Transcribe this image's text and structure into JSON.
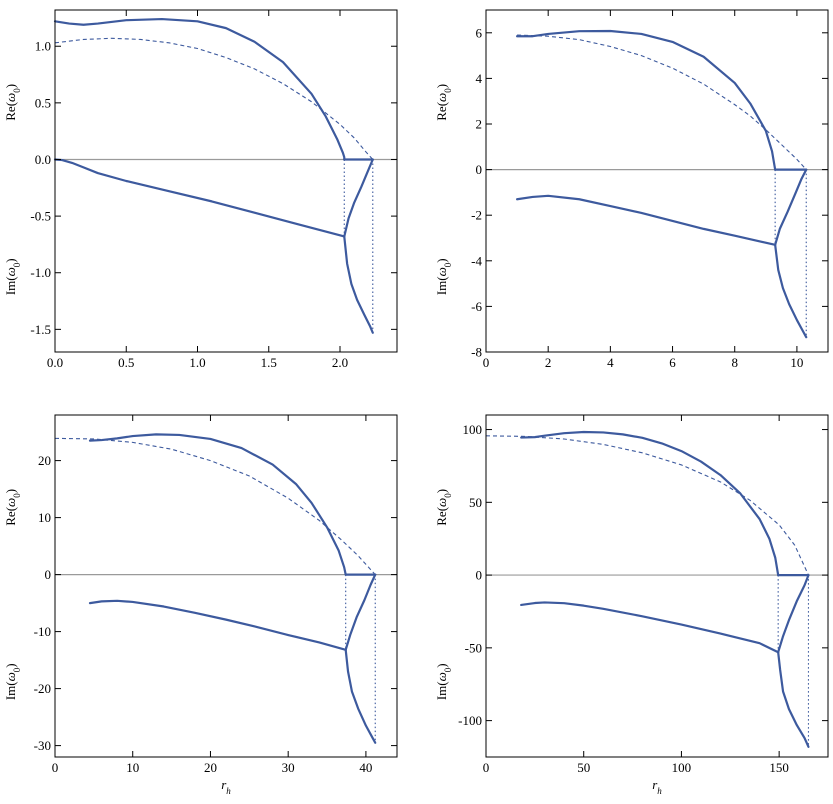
{
  "colors": {
    "curve": "#3d5a9e",
    "zero_line": "#9a9a9a",
    "frame": "#000000"
  },
  "chart_data": [
    {
      "type": "line",
      "xlabel": "",
      "ylabel_top": "Re(ω0)",
      "ylabel_bottom": "Im(ω0)",
      "xlim": [
        0,
        2.4
      ],
      "ylim": [
        -1.7,
        1.32
      ],
      "xticks": [
        0,
        0.5,
        1,
        1.5,
        2
      ],
      "xtick_labels": [
        "0.0",
        "0.5",
        "1.0",
        "1.5",
        "2.0"
      ],
      "yticks": [
        1.0,
        0.5,
        0,
        -0.5,
        -1.0,
        -1.5
      ],
      "ytick_labels": [
        "1.0",
        "0.5",
        "0.0",
        "-0.5",
        "-1.0",
        "-1.5"
      ],
      "grid": false,
      "series": [
        {
          "style": "solid",
          "x": [
            0,
            0.1,
            0.2,
            0.3,
            0.5,
            0.75,
            1.0,
            1.2,
            1.4,
            1.6,
            1.8,
            1.9,
            1.98,
            2.02,
            2.03,
            2.03
          ],
          "y": [
            1.22,
            1.2,
            1.19,
            1.2,
            1.23,
            1.24,
            1.22,
            1.16,
            1.04,
            0.86,
            0.58,
            0.38,
            0.18,
            0.06,
            0.02,
            0
          ]
        },
        {
          "style": "solid",
          "x": [
            2.03,
            2.23
          ],
          "y": [
            0,
            0
          ]
        },
        {
          "style": "solid",
          "x": [
            0,
            0.05,
            0.12,
            0.2,
            0.3,
            0.5,
            0.8,
            1.1,
            1.4,
            1.7,
            2.03
          ],
          "y": [
            0,
            -0.005,
            -0.03,
            -0.07,
            -0.12,
            -0.19,
            -0.28,
            -0.37,
            -0.47,
            -0.57,
            -0.68
          ]
        },
        {
          "style": "solid",
          "x": [
            2.03,
            2.05,
            2.08,
            2.12,
            2.17,
            2.21,
            2.23
          ],
          "y": [
            -0.68,
            -0.92,
            -1.1,
            -1.24,
            -1.37,
            -1.47,
            -1.53
          ]
        },
        {
          "style": "solid",
          "x": [
            2.03,
            2.06,
            2.1,
            2.15,
            2.19,
            2.22,
            2.23
          ],
          "y": [
            -0.68,
            -0.52,
            -0.38,
            -0.24,
            -0.12,
            -0.03,
            0
          ]
        },
        {
          "style": "dashed",
          "x": [
            0,
            0.2,
            0.4,
            0.6,
            0.8,
            1.0,
            1.2,
            1.4,
            1.6,
            1.8,
            2.0,
            2.1,
            2.18,
            2.23
          ],
          "y": [
            1.03,
            1.06,
            1.07,
            1.06,
            1.03,
            0.98,
            0.9,
            0.8,
            0.67,
            0.51,
            0.31,
            0.19,
            0.07,
            0
          ]
        },
        {
          "style": "dotted",
          "x": [
            2.03,
            2.03
          ],
          "y": [
            0,
            -0.68
          ]
        },
        {
          "style": "dotted",
          "x": [
            2.23,
            2.23
          ],
          "y": [
            0,
            -1.53
          ]
        }
      ]
    },
    {
      "type": "line",
      "xlabel": "",
      "ylabel_top": "Re(ω0)",
      "ylabel_bottom": "Im(ω0)",
      "xlim": [
        0,
        11
      ],
      "ylim": [
        -8,
        7
      ],
      "xticks": [
        0,
        2,
        4,
        6,
        8,
        10
      ],
      "xtick_labels": [
        "0",
        "2",
        "4",
        "6",
        "8",
        "10"
      ],
      "yticks": [
        6,
        4,
        2,
        0,
        -2,
        -4,
        -6,
        -8
      ],
      "ytick_labels": [
        "6",
        "4",
        "2",
        "0",
        "-2",
        "-4",
        "-6",
        "-8"
      ],
      "grid": false,
      "series": [
        {
          "style": "solid",
          "x": [
            1.0,
            1.5,
            2.0,
            3.0,
            4.0,
            5.0,
            6.0,
            7.0,
            8.0,
            8.5,
            9.0,
            9.2,
            9.3
          ],
          "y": [
            5.85,
            5.85,
            5.95,
            6.07,
            6.08,
            5.95,
            5.6,
            4.95,
            3.8,
            2.9,
            1.7,
            0.8,
            0
          ]
        },
        {
          "style": "solid",
          "x": [
            9.3,
            10.3
          ],
          "y": [
            0,
            0
          ]
        },
        {
          "style": "solid",
          "x": [
            1.0,
            1.5,
            2.0,
            3.0,
            4.0,
            5.0,
            6.0,
            7.0,
            8.0,
            9.3
          ],
          "y": [
            -1.3,
            -1.2,
            -1.15,
            -1.3,
            -1.6,
            -1.9,
            -2.25,
            -2.6,
            -2.9,
            -3.3
          ]
        },
        {
          "style": "solid",
          "x": [
            9.3,
            9.4,
            9.55,
            9.75,
            10.0,
            10.2,
            10.3
          ],
          "y": [
            -3.3,
            -4.4,
            -5.2,
            -5.9,
            -6.6,
            -7.1,
            -7.35
          ]
        },
        {
          "style": "solid",
          "x": [
            9.3,
            9.45,
            9.7,
            9.95,
            10.15,
            10.3
          ],
          "y": [
            -3.3,
            -2.6,
            -1.85,
            -1.05,
            -0.4,
            0
          ]
        },
        {
          "style": "dashed",
          "x": [
            1.0,
            2.0,
            3.0,
            4.0,
            5.0,
            6.0,
            7.0,
            8.0,
            8.5,
            9.0,
            9.5,
            10.0,
            10.3
          ],
          "y": [
            5.9,
            5.85,
            5.7,
            5.4,
            5.0,
            4.45,
            3.75,
            2.85,
            2.35,
            1.75,
            1.1,
            0.45,
            0
          ]
        },
        {
          "style": "dotted",
          "x": [
            9.3,
            9.3
          ],
          "y": [
            0,
            -3.3
          ]
        },
        {
          "style": "dotted",
          "x": [
            10.3,
            10.3
          ],
          "y": [
            0,
            -7.35
          ]
        }
      ]
    },
    {
      "type": "line",
      "xlabel": "r_h",
      "ylabel_top": "Re(ω0)",
      "ylabel_bottom": "Im(ω0)",
      "xlim": [
        0,
        44
      ],
      "ylim": [
        -32,
        28
      ],
      "xticks": [
        0,
        10,
        20,
        30,
        40
      ],
      "xtick_labels": [
        "0",
        "10",
        "20",
        "30",
        "40"
      ],
      "yticks": [
        20,
        10,
        0,
        -10,
        -20,
        -30
      ],
      "ytick_labels": [
        "20",
        "10",
        "0",
        "-10",
        "-20",
        "-30"
      ],
      "grid": false,
      "series": [
        {
          "style": "solid",
          "x": [
            4.5,
            6,
            8,
            10,
            13,
            16,
            20,
            24,
            28,
            31,
            33,
            35,
            36.5,
            37.2,
            37.4
          ],
          "y": [
            23.5,
            23.6,
            23.9,
            24.3,
            24.6,
            24.5,
            23.8,
            22.2,
            19.3,
            15.9,
            12.6,
            8.3,
            4.2,
            1.3,
            0
          ]
        },
        {
          "style": "solid",
          "x": [
            37.4,
            41.2
          ],
          "y": [
            0,
            0
          ]
        },
        {
          "style": "solid",
          "x": [
            4.5,
            6,
            8,
            10,
            14,
            18,
            22,
            26,
            30,
            34,
            37.4
          ],
          "y": [
            -5.0,
            -4.7,
            -4.6,
            -4.8,
            -5.6,
            -6.7,
            -7.9,
            -9.2,
            -10.6,
            -11.9,
            -13.2
          ]
        },
        {
          "style": "solid",
          "x": [
            37.4,
            37.7,
            38.2,
            39.0,
            40.0,
            40.8,
            41.2
          ],
          "y": [
            -13.2,
            -17,
            -20.5,
            -23.5,
            -26.5,
            -28.5,
            -29.5
          ]
        },
        {
          "style": "solid",
          "x": [
            37.4,
            38.0,
            38.8,
            39.8,
            40.6,
            41.2
          ],
          "y": [
            -13.2,
            -10.5,
            -7.5,
            -4.5,
            -1.8,
            0
          ]
        },
        {
          "style": "dashed",
          "x": [
            0,
            5,
            10,
            15,
            20,
            25,
            30,
            34,
            37,
            39,
            41.2
          ],
          "y": [
            23.9,
            23.8,
            23.2,
            22.0,
            20.0,
            17.3,
            13.4,
            9.5,
            5.9,
            3.3,
            0
          ]
        },
        {
          "style": "dotted",
          "x": [
            37.4,
            37.4
          ],
          "y": [
            0,
            -13.2
          ]
        },
        {
          "style": "dotted",
          "x": [
            41.2,
            41.2
          ],
          "y": [
            0,
            -29.5
          ]
        }
      ]
    },
    {
      "type": "line",
      "xlabel": "r_h",
      "ylabel_top": "Re(ω0)",
      "ylabel_bottom": "Im(ω0)",
      "xlim": [
        0,
        175
      ],
      "ylim": [
        -125,
        110
      ],
      "xticks": [
        0,
        50,
        100,
        150
      ],
      "xtick_labels": [
        "0",
        "50",
        "100",
        "150"
      ],
      "yticks": [
        100,
        50,
        0,
        -50,
        -100
      ],
      "ytick_labels": [
        "100",
        "50",
        "0",
        "-50",
        "-100"
      ],
      "grid": false,
      "series": [
        {
          "style": "solid",
          "x": [
            18,
            25,
            30,
            40,
            50,
            60,
            70,
            80,
            90,
            100,
            110,
            120,
            130,
            140,
            145,
            148,
            149.5
          ],
          "y": [
            94.5,
            94.8,
            95.8,
            97.5,
            98.3,
            98.0,
            96.7,
            94.3,
            90.5,
            85.2,
            78.0,
            68.7,
            56.3,
            38.5,
            25.0,
            12.0,
            0
          ]
        },
        {
          "style": "solid",
          "x": [
            149.5,
            165
          ],
          "y": [
            0,
            0
          ]
        },
        {
          "style": "solid",
          "x": [
            18,
            25,
            30,
            40,
            50,
            60,
            80,
            100,
            120,
            140,
            149.5
          ],
          "y": [
            -20.5,
            -19.2,
            -18.8,
            -19.3,
            -21.0,
            -23.2,
            -28.3,
            -34.0,
            -40.2,
            -46.8,
            -53.0
          ]
        },
        {
          "style": "solid",
          "x": [
            149.5,
            150.5,
            152,
            155,
            159,
            163,
            165
          ],
          "y": [
            -53,
            -65,
            -80,
            -92,
            -103,
            -112,
            -118
          ]
        },
        {
          "style": "solid",
          "x": [
            149.5,
            152,
            155,
            159,
            163,
            165
          ],
          "y": [
            -53,
            -42,
            -31,
            -18,
            -7,
            0
          ]
        },
        {
          "style": "dashed",
          "x": [
            0,
            20,
            40,
            60,
            80,
            100,
            120,
            135,
            150,
            158,
            165
          ],
          "y": [
            95.7,
            95.3,
            93.5,
            89.8,
            84.0,
            75.7,
            64.0,
            51.5,
            34.5,
            20.5,
            0
          ]
        },
        {
          "style": "dotted",
          "x": [
            149.5,
            149.5
          ],
          "y": [
            0,
            -53
          ]
        },
        {
          "style": "dotted",
          "x": [
            165,
            165
          ],
          "y": [
            0,
            -118
          ]
        }
      ]
    }
  ]
}
